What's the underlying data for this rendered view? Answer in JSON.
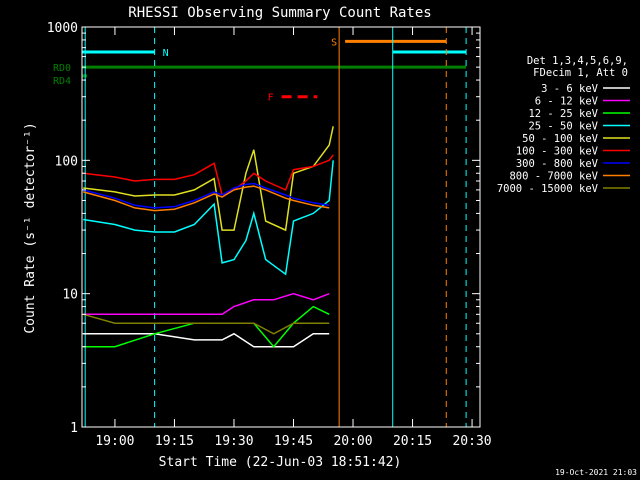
{
  "chart_data": {
    "type": "line",
    "title": "RHESSI Observing Summary Count Rates",
    "xlabel": "Start Time (22-Jun-03 18:51:42)",
    "ylabel": "Count Rate (s⁻¹ detector⁻¹)",
    "yscale": "log",
    "ylim": [
      1,
      1000
    ],
    "xlim": [
      "18:51:42",
      "20:32:00"
    ],
    "x_ticks": [
      "19:00",
      "19:15",
      "19:30",
      "19:45",
      "20:00",
      "20:15",
      "20:30"
    ],
    "y_ticks": [
      "1",
      "10",
      "100",
      "1000"
    ],
    "footer_date": "19-Oct-2021 21:03",
    "legend_header": [
      "Det 1,3,4,5,6,9,",
      "FDecim 1, Att 0"
    ],
    "legend_position": "right",
    "flags": {
      "N": {
        "label": "N",
        "color": "#00ffff",
        "x_start": "18:51:42",
        "x_end": "19:10:00",
        "level": 650
      },
      "N2": {
        "color": "#00ffff",
        "x_start": "20:10:00",
        "x_end": "20:28:30",
        "level": 650
      },
      "S": {
        "label": "S",
        "color": "#ff8000",
        "x_start": "19:58:00",
        "x_end": "20:23:30",
        "level": 780
      },
      "F": {
        "label": "F",
        "color": "#ff0000",
        "x_start": "19:42:00",
        "x_end": "19:51:00",
        "level": 300
      },
      "RD0": {
        "label": "RD0",
        "color": "#008000",
        "x_start": "18:51:42",
        "x_end": "20:28:30",
        "level": 500
      },
      "RD4": {
        "label": "RD4",
        "color": "#008000",
        "x_start": "18:51:42",
        "x_end": "18:53:00",
        "level": 430
      }
    },
    "vlines": [
      {
        "x": "18:52:30",
        "color": "#00ffff",
        "style": "solid"
      },
      {
        "x": "19:10:00",
        "color": "#00ffff",
        "style": "dashed"
      },
      {
        "x": "19:56:30",
        "color": "#ff8000",
        "style": "solid"
      },
      {
        "x": "20:10:00",
        "color": "#00ffff",
        "style": "solid"
      },
      {
        "x": "20:23:30",
        "color": "#ff8000",
        "style": "dashed"
      },
      {
        "x": "20:28:30",
        "color": "#00ffff",
        "style": "dashed"
      }
    ],
    "series": [
      {
        "name": "3 - 6 keV",
        "color": "#ffffff",
        "x": [
          "18:52",
          "19:00",
          "19:10",
          "19:20",
          "19:27",
          "19:30",
          "19:35",
          "19:40",
          "19:45",
          "19:50",
          "19:54"
        ],
        "y": [
          5,
          5,
          5,
          4.5,
          4.5,
          5,
          4,
          4,
          4,
          5,
          5
        ]
      },
      {
        "name": "6 - 12 keV",
        "color": "#ff00ff",
        "x": [
          "18:52",
          "19:00",
          "19:10",
          "19:20",
          "19:27",
          "19:30",
          "19:35",
          "19:40",
          "19:45",
          "19:50",
          "19:54"
        ],
        "y": [
          7,
          7,
          7,
          7,
          7,
          8,
          9,
          9,
          10,
          9,
          10
        ]
      },
      {
        "name": "12 - 25 keV",
        "color": "#00ff00",
        "x": [
          "18:52",
          "19:00",
          "19:10",
          "19:20",
          "19:27",
          "19:30",
          "19:35",
          "19:40",
          "19:45",
          "19:50",
          "19:54"
        ],
        "y": [
          4,
          4,
          5,
          6,
          6,
          6,
          6,
          4,
          6,
          8,
          7
        ]
      },
      {
        "name": "25 - 50 keV",
        "color": "#00ffff",
        "x": [
          "18:52",
          "19:00",
          "19:05",
          "19:10",
          "19:15",
          "19:20",
          "19:25",
          "19:27",
          "19:30",
          "19:33",
          "19:35",
          "19:38",
          "19:43",
          "19:45",
          "19:50",
          "19:54",
          "19:55"
        ],
        "y": [
          36,
          33,
          30,
          29,
          29,
          33,
          47,
          17,
          18,
          25,
          40,
          18,
          14,
          35,
          40,
          50,
          100
        ]
      },
      {
        "name": "50 - 100 keV",
        "color": "#e0e020",
        "x": [
          "18:52",
          "19:00",
          "19:05",
          "19:10",
          "19:15",
          "19:20",
          "19:25",
          "19:27",
          "19:30",
          "19:33",
          "19:35",
          "19:38",
          "19:43",
          "19:45",
          "19:50",
          "19:54",
          "19:55"
        ],
        "y": [
          62,
          58,
          54,
          55,
          55,
          60,
          73,
          30,
          30,
          80,
          120,
          35,
          30,
          80,
          90,
          130,
          180
        ]
      },
      {
        "name": "100 - 300 keV",
        "color": "#ff0000",
        "x": [
          "18:52",
          "19:00",
          "19:05",
          "19:10",
          "19:15",
          "19:20",
          "19:25",
          "19:27",
          "19:30",
          "19:33",
          "19:35",
          "19:38",
          "19:43",
          "19:45",
          "19:50",
          "19:54",
          "19:55"
        ],
        "y": [
          80,
          75,
          70,
          72,
          72,
          78,
          95,
          55,
          60,
          70,
          80,
          70,
          60,
          85,
          90,
          100,
          110
        ]
      },
      {
        "name": "300 - 800 keV",
        "color": "#0000ff",
        "x": [
          "18:52",
          "19:00",
          "19:05",
          "19:10",
          "19:15",
          "19:20",
          "19:25",
          "19:27",
          "19:30",
          "19:33",
          "19:35",
          "19:38",
          "19:43",
          "19:45",
          "19:50",
          "19:54"
        ],
        "y": [
          60,
          52,
          46,
          44,
          45,
          50,
          58,
          55,
          62,
          66,
          67,
          62,
          55,
          52,
          48,
          46
        ]
      },
      {
        "name": "800 - 7000 keV",
        "color": "#ff8000",
        "x": [
          "18:52",
          "19:00",
          "19:05",
          "19:10",
          "19:15",
          "19:20",
          "19:25",
          "19:27",
          "19:30",
          "19:33",
          "19:35",
          "19:38",
          "19:43",
          "19:45",
          "19:50",
          "19:54"
        ],
        "y": [
          58,
          50,
          44,
          42,
          43,
          48,
          56,
          53,
          60,
          63,
          64,
          60,
          52,
          50,
          46,
          44
        ]
      },
      {
        "name": "7000 - 15000 keV",
        "color": "#808000",
        "x": [
          "18:52",
          "19:00",
          "19:10",
          "19:20",
          "19:27",
          "19:30",
          "19:35",
          "19:40",
          "19:45",
          "19:50",
          "19:54"
        ],
        "y": [
          7,
          6,
          6,
          6,
          6,
          6,
          6,
          5,
          6,
          6,
          6
        ]
      }
    ]
  }
}
